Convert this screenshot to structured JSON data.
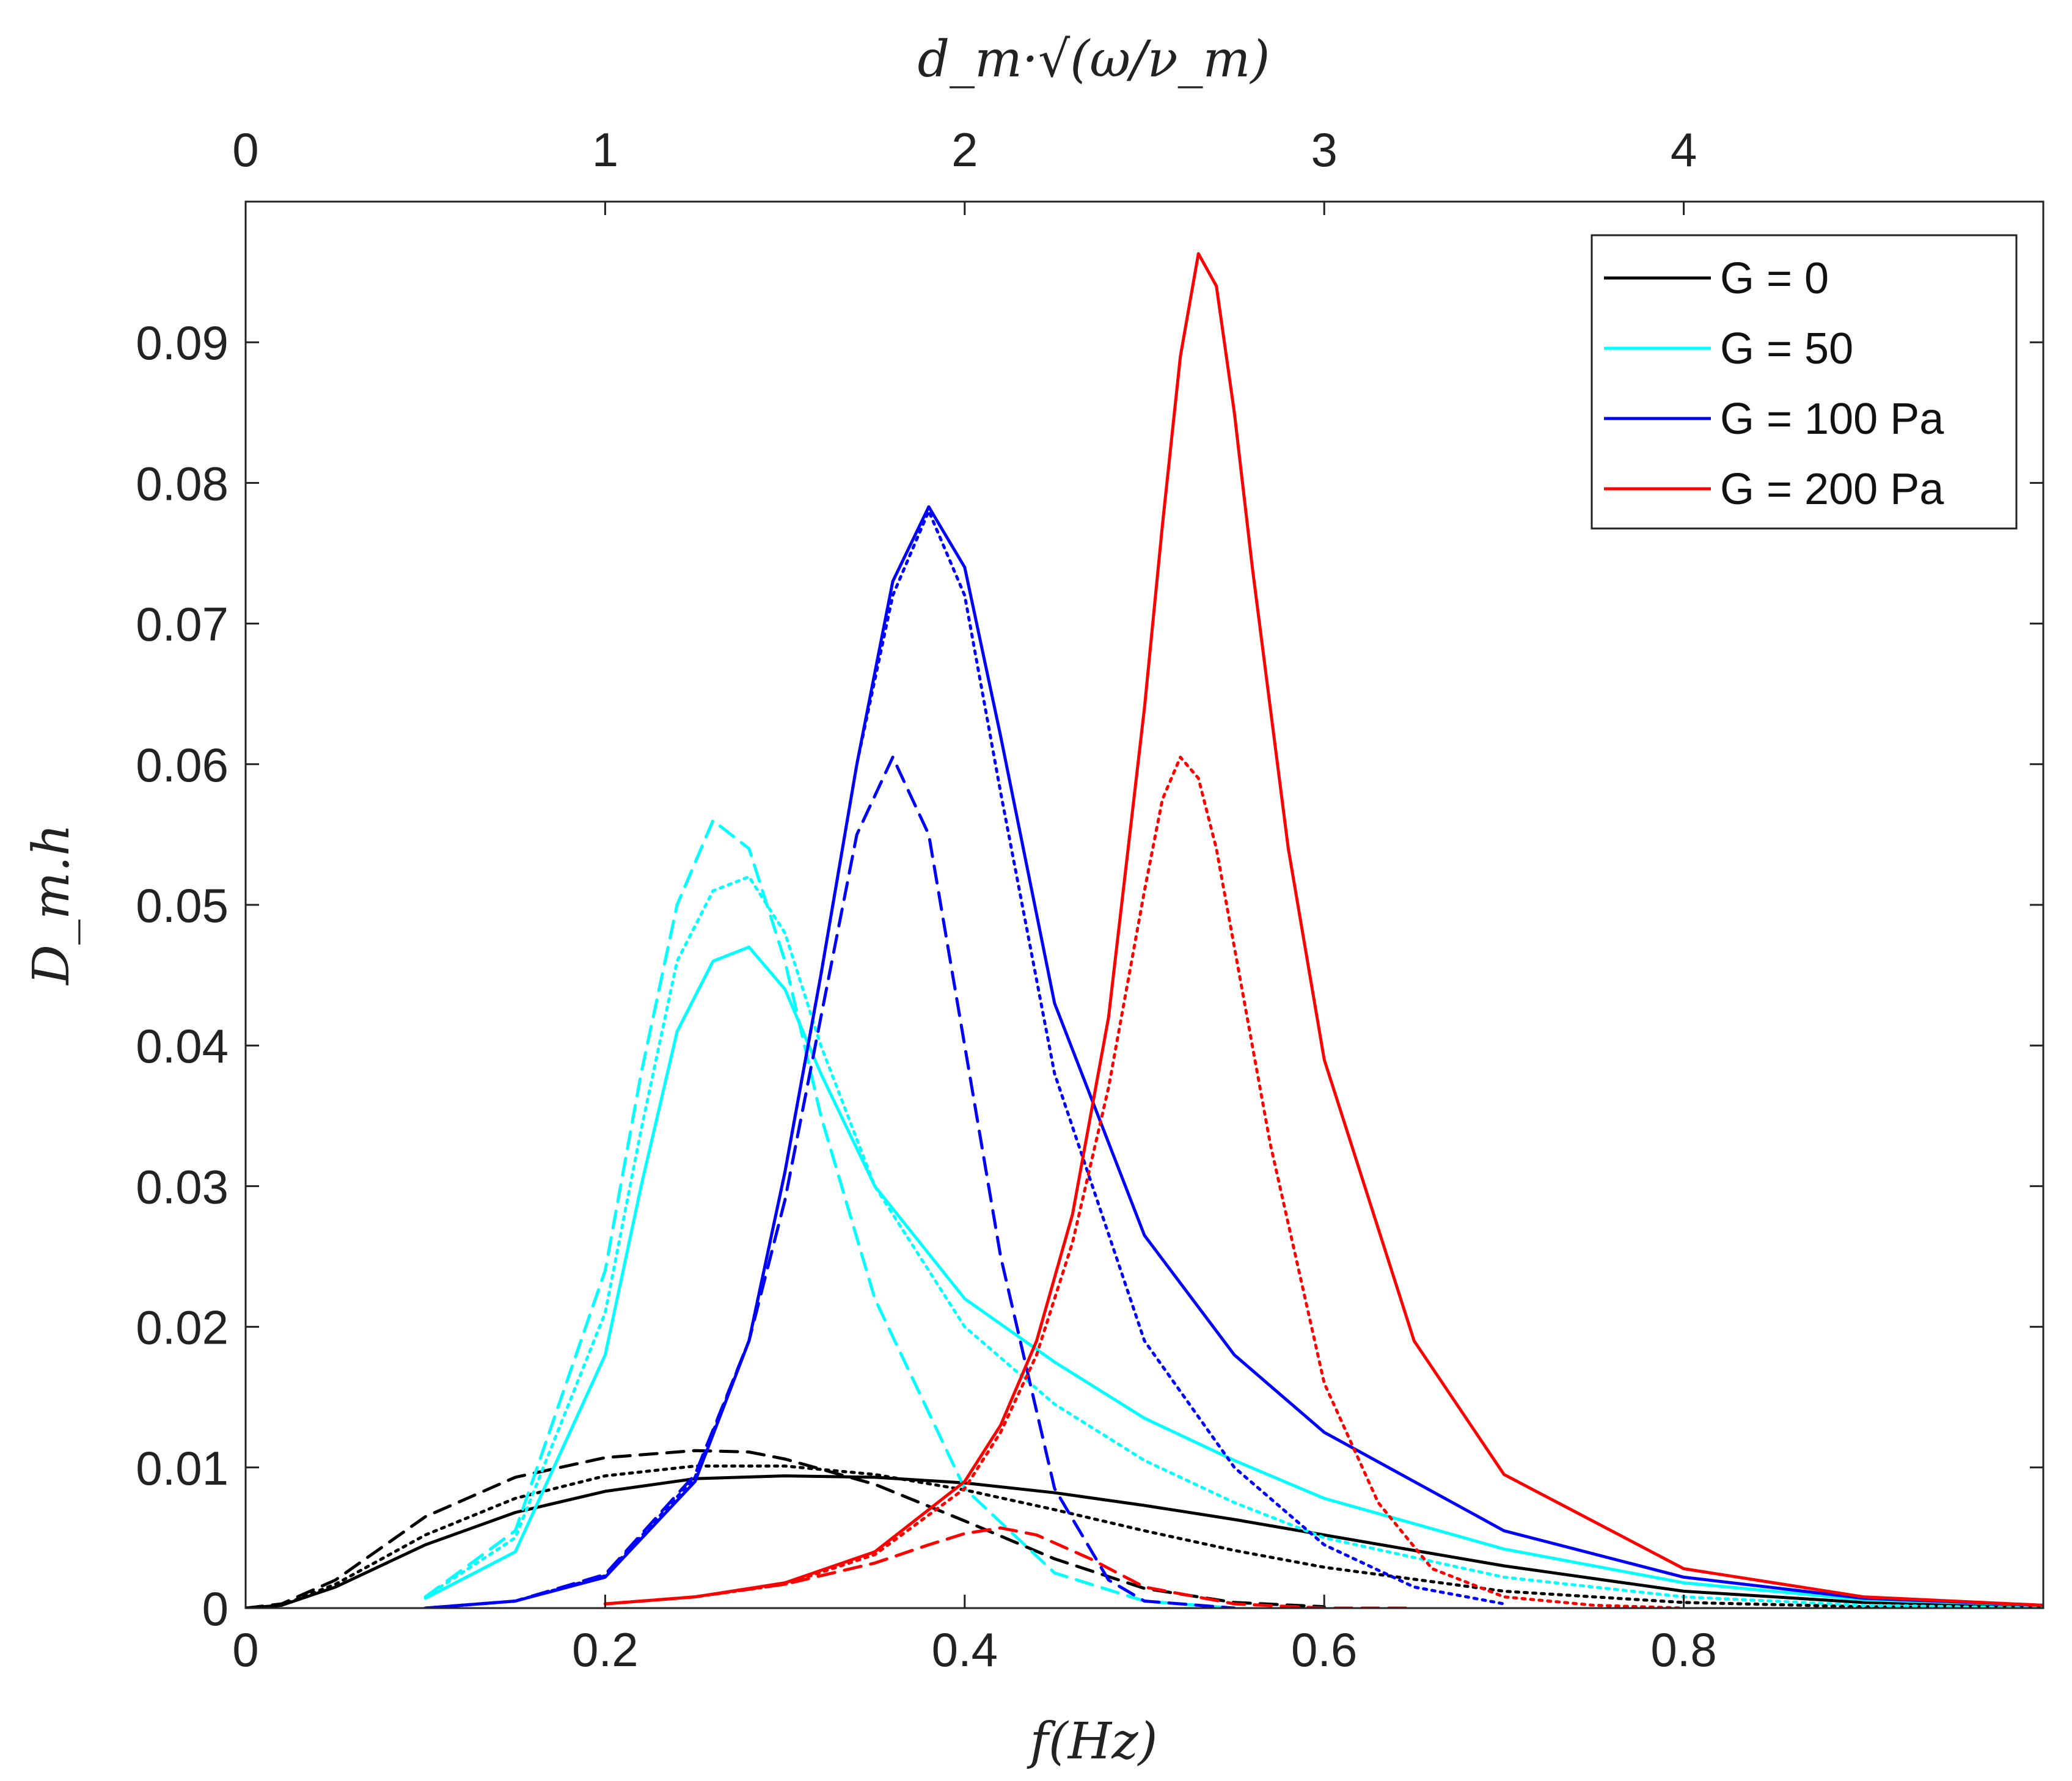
{
  "chart_data": {
    "type": "line",
    "title": "",
    "xlabel": "f(Hz)",
    "ylabel": "D_m.h",
    "top_xlabel": "d_m·√(ω/ν_m)",
    "xlim": [
      0,
      1.0
    ],
    "ylim": [
      0,
      0.1
    ],
    "top_xlim": [
      0,
      5.0
    ],
    "xticks": [
      0,
      0.2,
      0.4,
      0.6,
      0.8
    ],
    "xtick_labels": [
      "0",
      "0.2",
      "0.4",
      "0.6",
      "0.8"
    ],
    "yticks": [
      0,
      0.01,
      0.02,
      0.03,
      0.04,
      0.05,
      0.06,
      0.07,
      0.08,
      0.09
    ],
    "ytick_labels": [
      "0",
      "0.01",
      "0.02",
      "0.03",
      "0.04",
      "0.05",
      "0.06",
      "0.07",
      "0.08",
      "0.09"
    ],
    "top_xticks": [
      0,
      1,
      2,
      3,
      4
    ],
    "top_xtick_labels": [
      "0",
      "1",
      "2",
      "3",
      "4"
    ],
    "grid": false,
    "legend_position": "top-right",
    "legend": [
      {
        "label": "G = 0",
        "color": "#000000"
      },
      {
        "label": "G = 50",
        "color": "#00ffff"
      },
      {
        "label": "G = 100 Pa",
        "color": "#0000ff"
      },
      {
        "label": "G = 200 Pa",
        "color": "#ff0000"
      }
    ],
    "series": [
      {
        "name": "G = 0 solid",
        "color": "#000000",
        "style": "solid",
        "x": [
          0,
          0.02,
          0.05,
          0.1,
          0.15,
          0.2,
          0.25,
          0.3,
          0.35,
          0.4,
          0.45,
          0.5,
          0.55,
          0.6,
          0.65,
          0.7,
          0.8,
          0.9,
          1.0
        ],
        "y": [
          0,
          0.0002,
          0.0015,
          0.0045,
          0.0068,
          0.0083,
          0.0092,
          0.0094,
          0.0093,
          0.0089,
          0.0082,
          0.0073,
          0.0063,
          0.0052,
          0.0041,
          0.003,
          0.0012,
          0.0004,
          0.0001
        ]
      },
      {
        "name": "G = 0 dashed",
        "color": "#000000",
        "style": "dashed",
        "x": [
          0,
          0.02,
          0.05,
          0.1,
          0.15,
          0.2,
          0.25,
          0.28,
          0.3,
          0.35,
          0.4,
          0.45,
          0.5,
          0.55,
          0.6
        ],
        "y": [
          0,
          0.0003,
          0.002,
          0.0065,
          0.0093,
          0.0107,
          0.0112,
          0.0111,
          0.0106,
          0.0088,
          0.0062,
          0.0035,
          0.0014,
          0.0004,
          0.0001
        ]
      },
      {
        "name": "G = 0 dotted",
        "color": "#000000",
        "style": "dotted",
        "x": [
          0,
          0.02,
          0.05,
          0.1,
          0.15,
          0.2,
          0.25,
          0.3,
          0.35,
          0.4,
          0.45,
          0.5,
          0.55,
          0.6,
          0.7,
          0.8,
          0.9,
          1.0
        ],
        "y": [
          0,
          0.0002,
          0.0017,
          0.0052,
          0.0078,
          0.0094,
          0.0101,
          0.0101,
          0.0095,
          0.0084,
          0.007,
          0.0055,
          0.0041,
          0.0029,
          0.0012,
          0.0004,
          0.0001,
          0.0
        ]
      },
      {
        "name": "G = 50 solid",
        "color": "#00ffff",
        "style": "solid",
        "x": [
          0.1,
          0.15,
          0.2,
          0.22,
          0.24,
          0.26,
          0.28,
          0.3,
          0.32,
          0.35,
          0.4,
          0.45,
          0.5,
          0.55,
          0.6,
          0.7,
          0.8,
          0.9,
          1.0
        ],
        "y": [
          0.0007,
          0.004,
          0.018,
          0.03,
          0.041,
          0.046,
          0.047,
          0.044,
          0.038,
          0.03,
          0.022,
          0.0175,
          0.0135,
          0.0105,
          0.0078,
          0.0042,
          0.0018,
          0.0006,
          0.0002
        ]
      },
      {
        "name": "G = 50 dashed",
        "color": "#00ffff",
        "style": "dashed",
        "x": [
          0.1,
          0.15,
          0.2,
          0.22,
          0.24,
          0.26,
          0.28,
          0.3,
          0.32,
          0.35,
          0.4,
          0.45,
          0.5,
          0.55
        ],
        "y": [
          0.0008,
          0.0055,
          0.024,
          0.038,
          0.05,
          0.056,
          0.054,
          0.046,
          0.035,
          0.022,
          0.0085,
          0.0025,
          0.0005,
          0.0
        ]
      },
      {
        "name": "G = 50 dotted",
        "color": "#00ffff",
        "style": "dotted",
        "x": [
          0.1,
          0.15,
          0.2,
          0.22,
          0.24,
          0.26,
          0.28,
          0.3,
          0.32,
          0.35,
          0.4,
          0.45,
          0.5,
          0.55,
          0.6,
          0.7,
          0.8,
          0.9,
          1.0
        ],
        "y": [
          0.0008,
          0.005,
          0.021,
          0.034,
          0.046,
          0.051,
          0.052,
          0.048,
          0.04,
          0.03,
          0.02,
          0.0145,
          0.0105,
          0.0075,
          0.005,
          0.0022,
          0.0008,
          0.0002,
          0.0
        ]
      },
      {
        "name": "G = 100 Pa solid",
        "color": "#0000ff",
        "style": "solid",
        "x": [
          0.1,
          0.15,
          0.2,
          0.25,
          0.28,
          0.3,
          0.32,
          0.34,
          0.36,
          0.38,
          0.4,
          0.42,
          0.45,
          0.5,
          0.55,
          0.6,
          0.7,
          0.8,
          0.9,
          1.0
        ],
        "y": [
          0,
          0.0005,
          0.0022,
          0.009,
          0.019,
          0.031,
          0.045,
          0.06,
          0.073,
          0.0783,
          0.074,
          0.062,
          0.043,
          0.0265,
          0.018,
          0.0125,
          0.0055,
          0.0022,
          0.0007,
          0.0002
        ]
      },
      {
        "name": "G = 100 Pa dashed",
        "color": "#0000ff",
        "style": "dashed",
        "x": [
          0.1,
          0.15,
          0.2,
          0.25,
          0.28,
          0.3,
          0.32,
          0.34,
          0.36,
          0.38,
          0.4,
          0.42,
          0.45,
          0.48,
          0.5,
          0.55
        ],
        "y": [
          0,
          0.0005,
          0.0024,
          0.0095,
          0.019,
          0.029,
          0.042,
          0.055,
          0.0605,
          0.055,
          0.04,
          0.025,
          0.0085,
          0.002,
          0.0005,
          0.0
        ]
      },
      {
        "name": "G = 100 Pa dotted",
        "color": "#0000ff",
        "style": "dotted",
        "x": [
          0.1,
          0.15,
          0.2,
          0.25,
          0.28,
          0.3,
          0.32,
          0.34,
          0.36,
          0.38,
          0.4,
          0.42,
          0.45,
          0.5,
          0.55,
          0.6,
          0.65,
          0.7
        ],
        "y": [
          0,
          0.0005,
          0.0023,
          0.0093,
          0.019,
          0.031,
          0.045,
          0.06,
          0.072,
          0.078,
          0.072,
          0.058,
          0.038,
          0.019,
          0.01,
          0.0045,
          0.0015,
          0.0003
        ]
      },
      {
        "name": "G = 200 Pa solid",
        "color": "#ff0000",
        "style": "solid",
        "x": [
          0.2,
          0.25,
          0.3,
          0.35,
          0.4,
          0.42,
          0.44,
          0.46,
          0.48,
          0.5,
          0.51,
          0.52,
          0.53,
          0.54,
          0.55,
          0.56,
          0.58,
          0.6,
          0.65,
          0.7,
          0.8,
          0.9,
          1.0
        ],
        "y": [
          0.0003,
          0.0008,
          0.0018,
          0.004,
          0.009,
          0.013,
          0.019,
          0.028,
          0.042,
          0.064,
          0.077,
          0.089,
          0.0963,
          0.094,
          0.085,
          0.074,
          0.054,
          0.039,
          0.019,
          0.0095,
          0.0028,
          0.0008,
          0.0002
        ]
      },
      {
        "name": "G = 200 Pa dashed",
        "color": "#ff0000",
        "style": "dashed",
        "x": [
          0.2,
          0.25,
          0.3,
          0.35,
          0.38,
          0.4,
          0.42,
          0.44,
          0.47,
          0.5,
          0.55,
          0.6,
          0.65
        ],
        "y": [
          0.0003,
          0.0008,
          0.0017,
          0.0032,
          0.0045,
          0.0053,
          0.0057,
          0.0052,
          0.0035,
          0.0015,
          0.0003,
          0.0,
          0.0
        ]
      },
      {
        "name": "G = 200 Pa dotted",
        "color": "#ff0000",
        "style": "dotted",
        "x": [
          0.2,
          0.25,
          0.3,
          0.35,
          0.4,
          0.42,
          0.44,
          0.46,
          0.48,
          0.5,
          0.51,
          0.52,
          0.53,
          0.54,
          0.55,
          0.57,
          0.6,
          0.63,
          0.66,
          0.7,
          0.75,
          0.8
        ],
        "y": [
          0.0003,
          0.0008,
          0.0017,
          0.0038,
          0.0085,
          0.0125,
          0.018,
          0.026,
          0.037,
          0.051,
          0.0575,
          0.0605,
          0.059,
          0.054,
          0.047,
          0.033,
          0.016,
          0.0075,
          0.0028,
          0.0008,
          0.0002,
          0.0
        ]
      }
    ]
  }
}
